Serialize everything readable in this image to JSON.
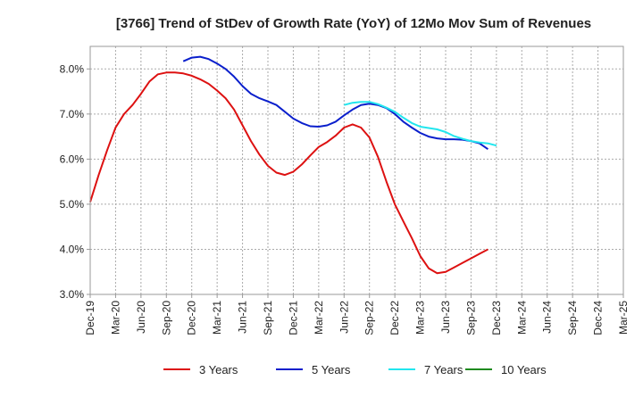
{
  "chart_data": {
    "type": "line",
    "title": "[3766]  Trend of StDev of Growth Rate (YoY) of 12Mo Mov Sum of Revenues",
    "xlabel": "",
    "ylabel": "",
    "ylim": [
      3.0,
      8.5
    ],
    "y_ticks": [
      3.0,
      4.0,
      5.0,
      6.0,
      7.0,
      8.0
    ],
    "y_tick_labels": [
      "3.0%",
      "4.0%",
      "5.0%",
      "6.0%",
      "7.0%",
      "8.0%"
    ],
    "grid": true,
    "legend_position": "bottom",
    "x_categories": [
      "Dec-19",
      "Mar-20",
      "Jun-20",
      "Sep-20",
      "Dec-20",
      "Mar-21",
      "Jun-21",
      "Sep-21",
      "Dec-21",
      "Mar-22",
      "Jun-22",
      "Sep-22",
      "Dec-22",
      "Mar-23",
      "Jun-23",
      "Sep-23",
      "Dec-23",
      "Mar-24",
      "Jun-24",
      "Sep-24",
      "Dec-24",
      "Mar-25"
    ],
    "series": [
      {
        "name": "3 Years",
        "color": "#dd1111",
        "start_index": 0,
        "values": [
          5.05,
          5.65,
          6.2,
          6.7,
          7.0,
          7.2,
          7.45,
          7.72,
          7.88,
          7.92,
          7.92,
          7.9,
          7.85,
          7.77,
          7.67,
          7.52,
          7.35,
          7.1,
          6.75,
          6.4,
          6.1,
          5.85,
          5.7,
          5.65,
          5.72,
          5.88,
          6.08,
          6.27,
          6.38,
          6.52,
          6.7,
          6.77,
          6.7,
          6.48,
          6.05,
          5.5,
          5.0,
          4.62,
          4.25,
          3.85,
          3.58,
          3.47,
          3.5,
          3.6,
          3.7,
          3.8,
          3.9,
          4.0
        ]
      },
      {
        "name": "5 Years",
        "color": "#0a1fcc",
        "start_index": 11,
        "values": [
          8.17,
          8.25,
          8.27,
          8.22,
          8.12,
          8.0,
          7.83,
          7.62,
          7.45,
          7.35,
          7.28,
          7.2,
          7.05,
          6.9,
          6.8,
          6.73,
          6.72,
          6.75,
          6.83,
          6.97,
          7.1,
          7.2,
          7.23,
          7.2,
          7.13,
          7.0,
          6.83,
          6.7,
          6.58,
          6.5,
          6.46,
          6.44,
          6.44,
          6.43,
          6.4,
          6.35,
          6.22
        ]
      },
      {
        "name": "7 Years",
        "color": "#22e6ee",
        "start_index": 30,
        "values": [
          7.2,
          7.25,
          7.27,
          7.27,
          7.22,
          7.14,
          7.05,
          6.92,
          6.8,
          6.72,
          6.69,
          6.66,
          6.6,
          6.51,
          6.45,
          6.4,
          6.37,
          6.35,
          6.3
        ]
      },
      {
        "name": "10 Years",
        "color": "#1f8a1f",
        "start_index": 0,
        "values": []
      }
    ]
  }
}
